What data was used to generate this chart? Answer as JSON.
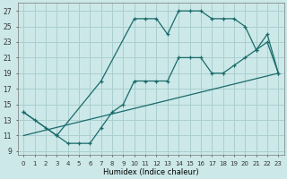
{
  "xlabel": "Humidex (Indice chaleur)",
  "bg_color": "#cce8e8",
  "grid_color": "#aacfcf",
  "line_color": "#1a6b6b",
  "xlim": [
    -0.5,
    23.5
  ],
  "ylim": [
    8.5,
    28
  ],
  "xticks": [
    0,
    1,
    2,
    3,
    4,
    5,
    6,
    7,
    8,
    9,
    10,
    11,
    12,
    13,
    14,
    15,
    16,
    17,
    18,
    19,
    20,
    21,
    22,
    23
  ],
  "yticks": [
    9,
    11,
    13,
    15,
    17,
    19,
    21,
    23,
    25,
    27
  ],
  "line1_x": [
    0,
    1,
    2,
    3,
    4,
    5,
    6,
    7,
    8,
    9,
    10,
    11,
    12,
    13,
    14,
    15,
    16,
    17,
    18,
    19,
    20,
    21,
    22,
    23
  ],
  "line1_y": [
    14,
    13,
    12,
    11,
    10,
    10,
    10,
    12,
    14,
    15,
    18,
    18,
    18,
    18,
    21,
    21,
    21,
    19,
    19,
    20,
    21,
    22,
    23,
    19
  ],
  "line2_x": [
    0,
    3,
    7,
    10,
    11,
    12,
    13,
    14,
    15,
    16,
    17,
    18,
    19,
    20,
    21,
    22,
    23
  ],
  "line2_y": [
    14,
    11,
    18,
    26,
    26,
    26,
    24,
    27,
    27,
    27,
    26,
    26,
    26,
    25,
    22,
    24,
    19
  ],
  "line3_x": [
    0,
    23
  ],
  "line3_y": [
    11,
    19
  ]
}
